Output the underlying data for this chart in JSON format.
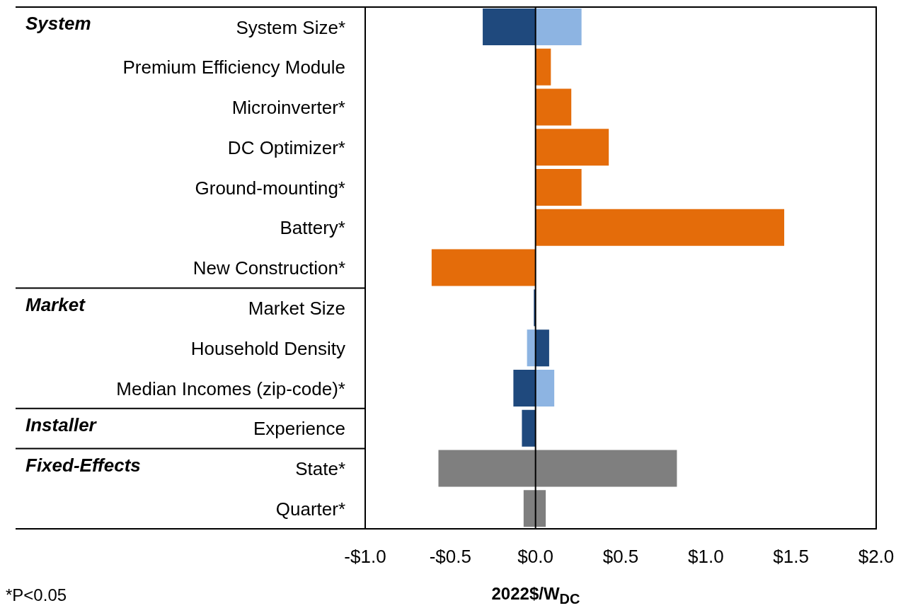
{
  "chart_data": {
    "type": "bar",
    "orientation": "horizontal",
    "xlabel": "2022$/W$_{DC}$",
    "categories": [
      "System Size*",
      "Premium Efficiency Module",
      "Microinverter*",
      "DC Optimizer*",
      "Ground-mounting*",
      "Battery*",
      "New Construction*",
      "Market Size",
      "Household Density",
      "Median Incomes (zip-code)*",
      "Experience",
      "State*",
      "Quarter*"
    ],
    "series": [
      {
        "color": "#1f497d",
        "values": [
          -0.31,
          null,
          null,
          null,
          null,
          null,
          null,
          -0.01,
          0.08,
          -0.13,
          -0.08,
          null,
          null
        ]
      },
      {
        "color": "#8db4e2",
        "values": [
          0.27,
          null,
          null,
          null,
          null,
          null,
          null,
          null,
          -0.05,
          0.11,
          null,
          null,
          null
        ]
      },
      {
        "color": "#e46c0a",
        "values": [
          null,
          0.09,
          0.21,
          0.43,
          0.27,
          1.46,
          -0.61,
          null,
          null,
          null,
          null,
          null,
          null
        ]
      },
      {
        "color": "#7f7f7f",
        "base": [
          null,
          null,
          null,
          null,
          null,
          null,
          null,
          null,
          null,
          null,
          null,
          -0.57,
          -0.07
        ],
        "values": [
          null,
          null,
          null,
          null,
          null,
          null,
          null,
          null,
          null,
          null,
          null,
          1.4,
          0.13
        ]
      }
    ],
    "xlim": [
      -1.0,
      2.0
    ],
    "xticks": [
      {
        "value": -1.0,
        "label": "-$1.0"
      },
      {
        "value": -0.5,
        "label": "-$0.5"
      },
      {
        "value": 0,
        "label": "$0.0"
      },
      {
        "value": 0.5,
        "label": "$0.5"
      },
      {
        "value": 1.0,
        "label": "$1.0"
      },
      {
        "value": 1.5,
        "label": "$1.5"
      },
      {
        "value": 2.0,
        "label": "$2.0"
      }
    ],
    "ref_lines": [
      {
        "axis": "x",
        "value": 0,
        "color": "#000000"
      }
    ],
    "annotations": [
      "System",
      "Market",
      "Installer",
      "Fixed-Effects",
      "*P<0.05"
    ]
  }
}
